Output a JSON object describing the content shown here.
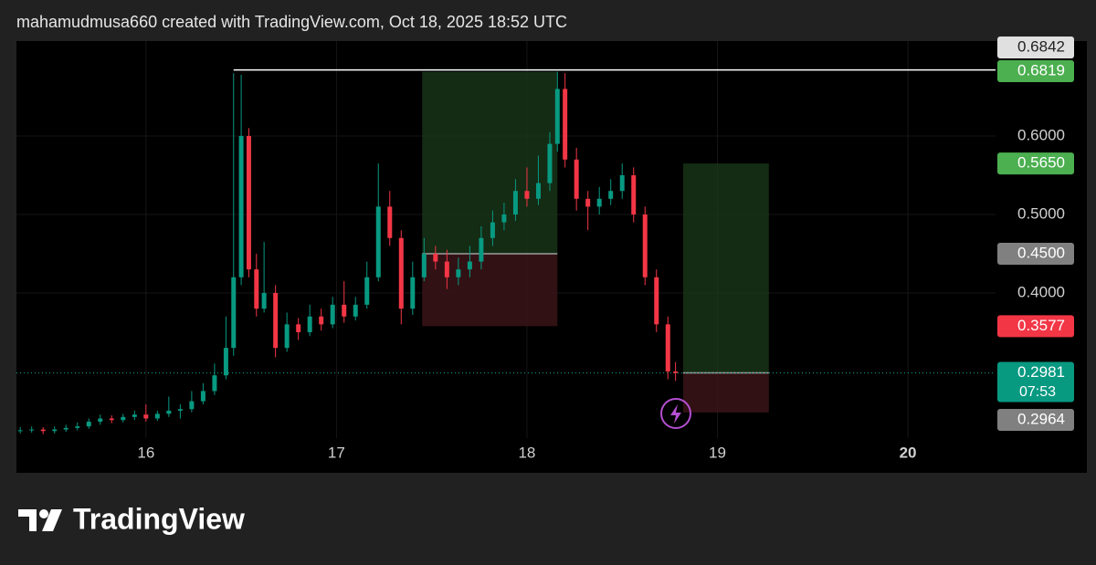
{
  "chart_data": {
    "type": "candlestick",
    "title": "mahamudmusa660 created with TradingView.com, Oct 18, 2025 18:52 UTC",
    "brand": "TradingView",
    "xlim": [
      15.32,
      20.46
    ],
    "xticks": [
      16,
      17,
      18,
      19,
      20
    ],
    "ylim": [
      0.215,
      0.721
    ],
    "yticks": [
      {
        "value": 0.4,
        "label": "0.4000"
      },
      {
        "value": 0.5,
        "label": "0.5000"
      },
      {
        "value": 0.6,
        "label": "0.6000"
      }
    ],
    "grid": true,
    "up_color": "#089981",
    "down_color": "#f23645",
    "candles": {
      "x": [
        15.34,
        15.4,
        15.46,
        15.52,
        15.58,
        15.64,
        15.7,
        15.76,
        15.82,
        15.88,
        15.94,
        16.0,
        16.06,
        16.12,
        16.18,
        16.24,
        16.3,
        16.36,
        16.42,
        16.46,
        16.5,
        16.54,
        16.58,
        16.62,
        16.68,
        16.74,
        16.8,
        16.86,
        16.92,
        16.98,
        17.04,
        17.1,
        17.16,
        17.22,
        17.28,
        17.34,
        17.4,
        17.46,
        17.52,
        17.58,
        17.64,
        17.7,
        17.76,
        17.82,
        17.88,
        17.94,
        18.0,
        18.06,
        18.12,
        18.16,
        18.2,
        18.26,
        18.32,
        18.38,
        18.44,
        18.5,
        18.56,
        18.62,
        18.68,
        18.74,
        18.78
      ],
      "open": [
        0.224,
        0.225,
        0.226,
        0.224,
        0.226,
        0.228,
        0.23,
        0.236,
        0.24,
        0.238,
        0.242,
        0.245,
        0.24,
        0.246,
        0.25,
        0.252,
        0.262,
        0.275,
        0.295,
        0.33,
        0.42,
        0.6,
        0.43,
        0.38,
        0.4,
        0.33,
        0.36,
        0.35,
        0.37,
        0.36,
        0.385,
        0.37,
        0.385,
        0.42,
        0.51,
        0.47,
        0.38,
        0.42,
        0.45,
        0.44,
        0.42,
        0.43,
        0.44,
        0.47,
        0.49,
        0.5,
        0.53,
        0.52,
        0.54,
        0.59,
        0.66,
        0.57,
        0.52,
        0.51,
        0.52,
        0.53,
        0.55,
        0.5,
        0.42,
        0.36,
        0.3
      ],
      "high": [
        0.229,
        0.23,
        0.229,
        0.23,
        0.232,
        0.235,
        0.24,
        0.245,
        0.244,
        0.246,
        0.25,
        0.258,
        0.25,
        0.268,
        0.258,
        0.275,
        0.285,
        0.31,
        0.37,
        0.68,
        0.678,
        0.61,
        0.45,
        0.465,
        0.41,
        0.375,
        0.368,
        0.385,
        0.38,
        0.395,
        0.415,
        0.395,
        0.44,
        0.565,
        0.53,
        0.48,
        0.44,
        0.47,
        0.46,
        0.455,
        0.445,
        0.46,
        0.485,
        0.505,
        0.515,
        0.545,
        0.56,
        0.575,
        0.605,
        0.682,
        0.68,
        0.585,
        0.53,
        0.535,
        0.545,
        0.565,
        0.56,
        0.51,
        0.43,
        0.37,
        0.312
      ],
      "low": [
        0.221,
        0.222,
        0.22,
        0.221,
        0.223,
        0.225,
        0.227,
        0.232,
        0.234,
        0.235,
        0.238,
        0.236,
        0.237,
        0.242,
        0.24,
        0.248,
        0.258,
        0.27,
        0.29,
        0.32,
        0.41,
        0.42,
        0.37,
        0.375,
        0.318,
        0.325,
        0.34,
        0.345,
        0.352,
        0.355,
        0.362,
        0.365,
        0.38,
        0.415,
        0.46,
        0.36,
        0.372,
        0.415,
        0.43,
        0.405,
        0.41,
        0.42,
        0.43,
        0.46,
        0.48,
        0.492,
        0.51,
        0.512,
        0.53,
        0.58,
        0.56,
        0.505,
        0.48,
        0.5,
        0.512,
        0.52,
        0.49,
        0.41,
        0.35,
        0.29,
        0.288
      ],
      "close": [
        0.225,
        0.226,
        0.224,
        0.226,
        0.228,
        0.23,
        0.236,
        0.24,
        0.238,
        0.242,
        0.245,
        0.24,
        0.246,
        0.25,
        0.252,
        0.262,
        0.275,
        0.295,
        0.33,
        0.42,
        0.6,
        0.43,
        0.38,
        0.4,
        0.33,
        0.36,
        0.35,
        0.37,
        0.36,
        0.385,
        0.37,
        0.385,
        0.42,
        0.51,
        0.47,
        0.38,
        0.42,
        0.45,
        0.44,
        0.42,
        0.43,
        0.44,
        0.47,
        0.49,
        0.5,
        0.53,
        0.52,
        0.54,
        0.59,
        0.66,
        0.57,
        0.52,
        0.51,
        0.52,
        0.53,
        0.55,
        0.5,
        0.42,
        0.36,
        0.3,
        0.298
      ]
    },
    "hline": {
      "value": 0.6842,
      "x_start": 16.46,
      "color": "#ffffff"
    },
    "positions": [
      {
        "x_start": 17.45,
        "x_end": 18.16,
        "entry": 0.45,
        "target": 0.6819,
        "stop": 0.3577
      },
      {
        "x_start": 18.82,
        "x_end": 19.27,
        "entry": 0.2981,
        "target": 0.565,
        "stop": 0.2477
      }
    ],
    "price_labels": [
      {
        "value": 0.6842,
        "label": "0.6842",
        "color": "#e0e0e0"
      },
      {
        "value": 0.6819,
        "label": "0.6819",
        "color": "#4caf50"
      },
      {
        "value": 0.565,
        "label": "0.5650",
        "color": "#4caf50"
      },
      {
        "value": 0.45,
        "label": "0.4500",
        "color": "#808080"
      },
      {
        "value": 0.3577,
        "label": "0.3577",
        "color": "#f23645"
      },
      {
        "value": 0.2981,
        "label": "0.2981",
        "countdown": "07:53",
        "color": "#089981"
      },
      {
        "value": 0.2964,
        "label": "0.2964",
        "color": "#808080"
      }
    ]
  }
}
